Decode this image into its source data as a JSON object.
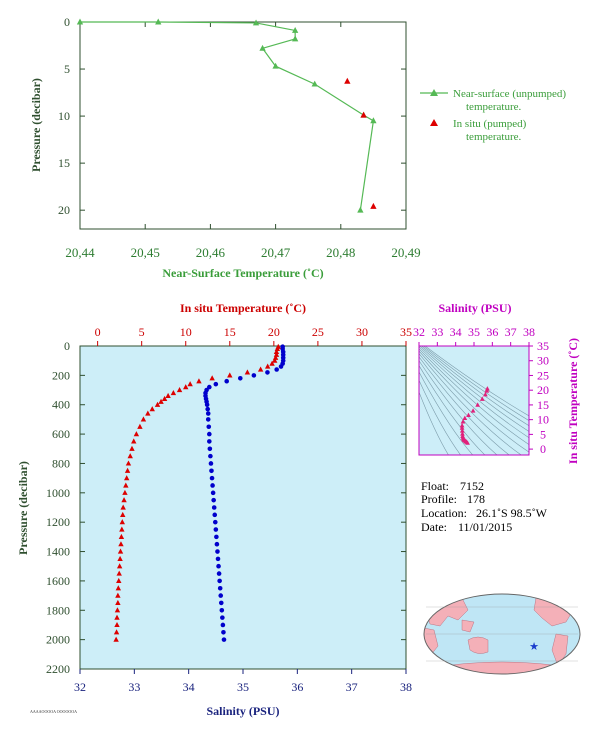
{
  "chart_data": [
    {
      "type": "line",
      "xlabel": "Near-Surface Temperature (˚C)",
      "ylabel": "Pressure (decibar)",
      "xlim": [
        20.44,
        20.49
      ],
      "ylim": [
        22,
        0
      ],
      "xticks": [
        "20.44",
        "20.45",
        "20.46",
        "20.47",
        "20.48",
        "20.49"
      ],
      "yticks": [
        "0",
        "5",
        "10",
        "15",
        "20"
      ],
      "series": [
        {
          "name": "Near-surface (unpumped) temperature.",
          "color": "#55b955",
          "marker": "triangle",
          "x": [
            20.44,
            20.452,
            20.467,
            20.473,
            20.473,
            20.468,
            20.47,
            20.476,
            20.4835,
            20.485,
            20.483
          ],
          "y": [
            0,
            0,
            0.1,
            0.9,
            1.8,
            2.8,
            4.7,
            6.6,
            9.9,
            10.5,
            20.0
          ]
        },
        {
          "name": "In situ (pumped) temperature.",
          "color": "#dd0000",
          "marker": "triangle",
          "x": [
            20.481,
            20.4835,
            20.485
          ],
          "y": [
            6.3,
            9.9,
            19.6
          ]
        }
      ],
      "legend": [
        [
          "Near-surface (unpumped)",
          "temperature."
        ],
        [
          "In situ (pumped)",
          "temperature."
        ]
      ]
    },
    {
      "type": "scatter",
      "ylabel": "Pressure (decibar)",
      "top_axis_label": "In situ Temperature (˚C)",
      "bottom_axis_label": "Salinity (PSU)",
      "ylim": [
        2200,
        0
      ],
      "temp_lim": [
        -2,
        35
      ],
      "sal_lim": [
        32,
        38
      ],
      "temp_ticks": [
        "0",
        "5",
        "10",
        "15",
        "20",
        "25",
        "30",
        "35"
      ],
      "sal_ticks": [
        "32",
        "33",
        "34",
        "35",
        "36",
        "37",
        "38"
      ],
      "yticks": [
        "0",
        "200",
        "400",
        "600",
        "800",
        "1000",
        "1200",
        "1400",
        "1600",
        "1800",
        "2000",
        "2200"
      ],
      "temperature": {
        "color": "#dd0000",
        "pressure": [
          5,
          20,
          40,
          60,
          80,
          100,
          120,
          140,
          160,
          180,
          200,
          220,
          240,
          260,
          280,
          300,
          320,
          340,
          360,
          380,
          400,
          430,
          460,
          500,
          550,
          600,
          650,
          700,
          750,
          800,
          850,
          900,
          950,
          1000,
          1050,
          1100,
          1150,
          1200,
          1250,
          1300,
          1350,
          1400,
          1450,
          1500,
          1550,
          1600,
          1650,
          1700,
          1750,
          1800,
          1850,
          1900,
          1950,
          2000
        ],
        "temp": [
          20.5,
          20.4,
          20.3,
          20.3,
          20.2,
          20.1,
          19.8,
          19.3,
          18.5,
          17.0,
          15.0,
          13.0,
          11.5,
          10.5,
          10.0,
          9.3,
          8.6,
          8.0,
          7.6,
          7.2,
          6.8,
          6.2,
          5.7,
          5.2,
          4.8,
          4.4,
          4.1,
          3.9,
          3.7,
          3.5,
          3.4,
          3.3,
          3.2,
          3.1,
          3.0,
          2.9,
          2.85,
          2.8,
          2.75,
          2.7,
          2.65,
          2.6,
          2.55,
          2.5,
          2.45,
          2.4,
          2.35,
          2.3,
          2.3,
          2.25,
          2.2,
          2.2,
          2.15,
          2.1
        ]
      },
      "salinity": {
        "color": "#0000cc",
        "pressure": [
          5,
          20,
          40,
          60,
          80,
          100,
          120,
          140,
          160,
          180,
          200,
          220,
          240,
          260,
          280,
          300,
          320,
          340,
          360,
          380,
          400,
          430,
          460,
          500,
          550,
          600,
          650,
          700,
          750,
          800,
          850,
          900,
          950,
          1000,
          1050,
          1100,
          1150,
          1200,
          1250,
          1300,
          1350,
          1400,
          1450,
          1500,
          1550,
          1600,
          1650,
          1700,
          1750,
          1800,
          1850,
          1900,
          1950,
          2000
        ],
        "sal": [
          35.73,
          35.73,
          35.74,
          35.74,
          35.74,
          35.74,
          35.73,
          35.7,
          35.62,
          35.45,
          35.2,
          34.95,
          34.7,
          34.5,
          34.38,
          34.33,
          34.31,
          34.31,
          34.32,
          34.33,
          34.34,
          34.35,
          34.36,
          34.36,
          34.37,
          34.38,
          34.38,
          34.39,
          34.4,
          34.41,
          34.42,
          34.43,
          34.44,
          34.45,
          34.46,
          34.47,
          34.48,
          34.49,
          34.5,
          34.51,
          34.52,
          34.53,
          34.54,
          34.55,
          34.56,
          34.57,
          34.58,
          34.59,
          34.6,
          34.61,
          34.62,
          34.63,
          34.64,
          34.65
        ]
      }
    },
    {
      "type": "scatter",
      "title": "Salinity (PSU)",
      "ylabel": "In situ Temperature (˚C)",
      "xlim": [
        32,
        38
      ],
      "ylim": [
        -2,
        35
      ],
      "xticks": [
        "32",
        "33",
        "34",
        "35",
        "36",
        "37",
        "38"
      ],
      "yticks": [
        "0",
        "5",
        "10",
        "15",
        "20",
        "25",
        "30",
        "35"
      ],
      "color": "#e0207a",
      "sal": [
        35.73,
        35.7,
        35.62,
        35.45,
        35.2,
        34.95,
        34.7,
        34.5,
        34.4,
        34.35,
        34.35,
        34.36,
        34.37,
        34.38,
        34.4,
        34.42,
        34.45,
        34.48,
        34.52,
        34.56,
        34.6,
        34.65
      ],
      "temp": [
        20.5,
        19.8,
        18.5,
        17.0,
        15.0,
        13.0,
        11.5,
        10.5,
        9.3,
        8.0,
        7.2,
        6.2,
        5.2,
        4.4,
        3.9,
        3.5,
        3.2,
        3.0,
        2.8,
        2.6,
        2.4,
        2.1
      ]
    }
  ],
  "info": {
    "float_label": "Float:",
    "float_value": "7152",
    "profile_label": "Profile:",
    "profile_value": "178",
    "location_label": "Location:",
    "location_value": "26.1˚S  98.5˚W",
    "date_label": "Date:",
    "date_value": "11/01/2015"
  },
  "map": {
    "marker": "★",
    "marker_color": "#1a3ccc",
    "land_color": "#f4b0b8",
    "ocean_color": "#bfe6f5"
  },
  "footer_text": "AAAAOOOOA OOOOOOA"
}
